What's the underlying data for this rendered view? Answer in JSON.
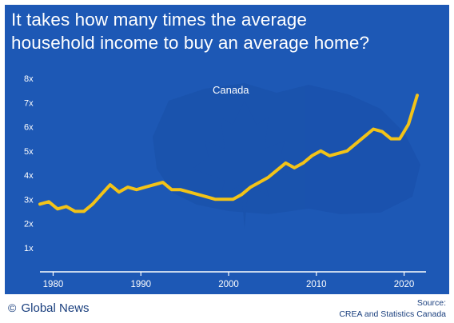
{
  "chart_data": {
    "type": "line",
    "title_lines": [
      "It takes how many times the average",
      "household income to buy an average home?"
    ],
    "annotation": "Canada",
    "x_ticks": [
      "1980",
      "1990",
      "2000",
      "2010",
      "2020"
    ],
    "y_ticks": [
      "1x",
      "2x",
      "3x",
      "4x",
      "5x",
      "6x",
      "7x",
      "8x"
    ],
    "xlim": [
      1978.5,
      2022.5
    ],
    "ylim": [
      0,
      8
    ],
    "grid": false,
    "series": [
      {
        "color": "#f2c318",
        "x": [
          1978.5,
          1979.5,
          1980.5,
          1981.5,
          1982.5,
          1983.5,
          1984.5,
          1985.5,
          1986.5,
          1987.5,
          1988.5,
          1989.5,
          1990.5,
          1991.5,
          1992.5,
          1993.5,
          1994.5,
          1995.5,
          1996.5,
          1997.5,
          1998.5,
          1999.5,
          2000.5,
          2001.5,
          2002.5,
          2003.5,
          2004.5,
          2005.5,
          2006.5,
          2007.5,
          2008.5,
          2009.5,
          2010.5,
          2011.5,
          2012.5,
          2013.5,
          2014.5,
          2015.5,
          2016.5,
          2017.5,
          2018.5,
          2019.5,
          2020.5,
          2021.5
        ],
        "y": [
          2.8,
          2.9,
          2.6,
          2.7,
          2.5,
          2.5,
          2.8,
          3.2,
          3.6,
          3.3,
          3.5,
          3.4,
          3.5,
          3.6,
          3.7,
          3.4,
          3.4,
          3.3,
          3.2,
          3.1,
          3.0,
          3.0,
          3.0,
          3.2,
          3.5,
          3.7,
          3.9,
          4.2,
          4.5,
          4.3,
          4.5,
          4.8,
          5.0,
          4.8,
          4.9,
          5.0,
          5.3,
          5.6,
          5.9,
          5.8,
          5.5,
          5.5,
          6.1,
          7.3
        ]
      }
    ]
  },
  "footer": {
    "brand_symbol": "©",
    "brand": "Global News",
    "source_label": "Source:",
    "source": "CREA and Statistics Canada"
  }
}
